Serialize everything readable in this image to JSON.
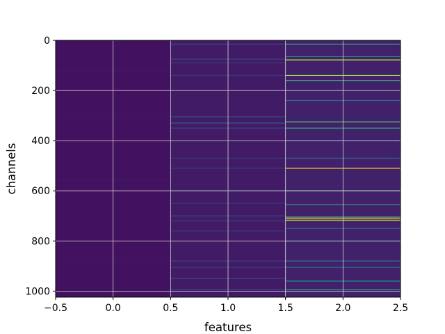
{
  "chart_data": {
    "type": "heatmap",
    "title": "",
    "xlabel": "features",
    "ylabel": "channels",
    "xlim": [
      -0.5,
      2.5
    ],
    "ylim": [
      1024,
      0
    ],
    "y_inverted": true,
    "grid": true,
    "colormap": "viridis",
    "x_ticks": [
      "−0.5",
      "0.0",
      "0.5",
      "1.0",
      "1.5",
      "2.0",
      "2.5"
    ],
    "x_tick_values": [
      -0.5,
      0.0,
      0.5,
      1.0,
      1.5,
      2.0,
      2.5
    ],
    "y_ticks": [
      "0",
      "200",
      "400",
      "600",
      "800",
      "1000"
    ],
    "y_tick_values": [
      0,
      200,
      400,
      600,
      800,
      1000
    ],
    "columns": [
      {
        "feature": 0,
        "base_value": 0.05,
        "stripes": [
          [
            120,
            0.08
          ],
          [
            300,
            0.07
          ],
          [
            560,
            0.08
          ],
          [
            880,
            0.07
          ]
        ]
      },
      {
        "feature": 1,
        "base_value": 0.08,
        "stripes": [
          [
            15,
            0.22
          ],
          [
            75,
            0.2
          ],
          [
            90,
            0.18
          ],
          [
            140,
            0.16
          ],
          [
            305,
            0.22
          ],
          [
            330,
            0.3
          ],
          [
            350,
            0.2
          ],
          [
            470,
            0.16
          ],
          [
            510,
            0.18
          ],
          [
            600,
            0.2
          ],
          [
            650,
            0.16
          ],
          [
            700,
            0.22
          ],
          [
            720,
            0.2
          ],
          [
            760,
            0.16
          ],
          [
            880,
            0.2
          ],
          [
            905,
            0.18
          ],
          [
            950,
            0.2
          ],
          [
            995,
            0.22
          ]
        ]
      },
      {
        "feature": 2,
        "base_value": 0.1,
        "stripes": [
          [
            15,
            0.6
          ],
          [
            65,
            0.5
          ],
          [
            78,
            0.95
          ],
          [
            140,
            0.85
          ],
          [
            160,
            0.6
          ],
          [
            240,
            0.35
          ],
          [
            325,
            0.7
          ],
          [
            350,
            0.6
          ],
          [
            400,
            0.3
          ],
          [
            470,
            0.3
          ],
          [
            510,
            1.0
          ],
          [
            600,
            0.7
          ],
          [
            655,
            0.55
          ],
          [
            705,
            0.75
          ],
          [
            712,
            1.0
          ],
          [
            718,
            0.9
          ],
          [
            750,
            0.3
          ],
          [
            800,
            0.3
          ],
          [
            880,
            0.4
          ],
          [
            905,
            0.35
          ],
          [
            960,
            0.5
          ],
          [
            995,
            0.55
          ]
        ]
      }
    ]
  }
}
